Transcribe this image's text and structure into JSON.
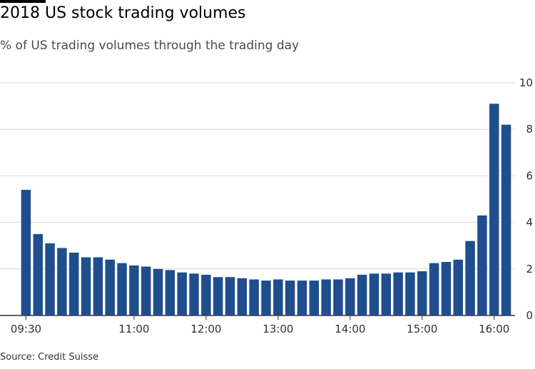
{
  "title": "2018 US stock trading volumes",
  "subtitle": "% of US trading volumes through the trading day",
  "source": "Source: Credit Suisse",
  "colors": {
    "bar": "#1f4e8c",
    "grid": "#d9d9d9",
    "axis": "#33302e"
  },
  "chart_data": {
    "type": "bar",
    "title": "2018 US stock trading volumes",
    "subtitle": "% of US trading volumes through the trading day",
    "xlabel": "",
    "ylabel": "",
    "ylim": [
      0,
      10
    ],
    "yticks": [
      0,
      2,
      4,
      6,
      8,
      10
    ],
    "y_axis_side": "right",
    "grid": "horizontal",
    "x_tick_labels": [
      {
        "label": "09:30",
        "index": 0
      },
      {
        "label": "11:00",
        "index": 9
      },
      {
        "label": "12:00",
        "index": 15
      },
      {
        "label": "13:00",
        "index": 21
      },
      {
        "label": "14:00",
        "index": 27
      },
      {
        "label": "15:00",
        "index": 33
      },
      {
        "label": "16:00",
        "index": 39
      }
    ],
    "values": [
      5.4,
      3.5,
      3.1,
      2.9,
      2.7,
      2.5,
      2.5,
      2.4,
      2.25,
      2.15,
      2.1,
      2.0,
      1.95,
      1.85,
      1.8,
      1.75,
      1.65,
      1.65,
      1.6,
      1.55,
      1.5,
      1.55,
      1.5,
      1.5,
      1.5,
      1.55,
      1.55,
      1.6,
      1.75,
      1.8,
      1.8,
      1.85,
      1.85,
      1.9,
      2.25,
      2.3,
      2.4,
      3.2,
      4.3,
      9.1,
      8.2
    ]
  }
}
